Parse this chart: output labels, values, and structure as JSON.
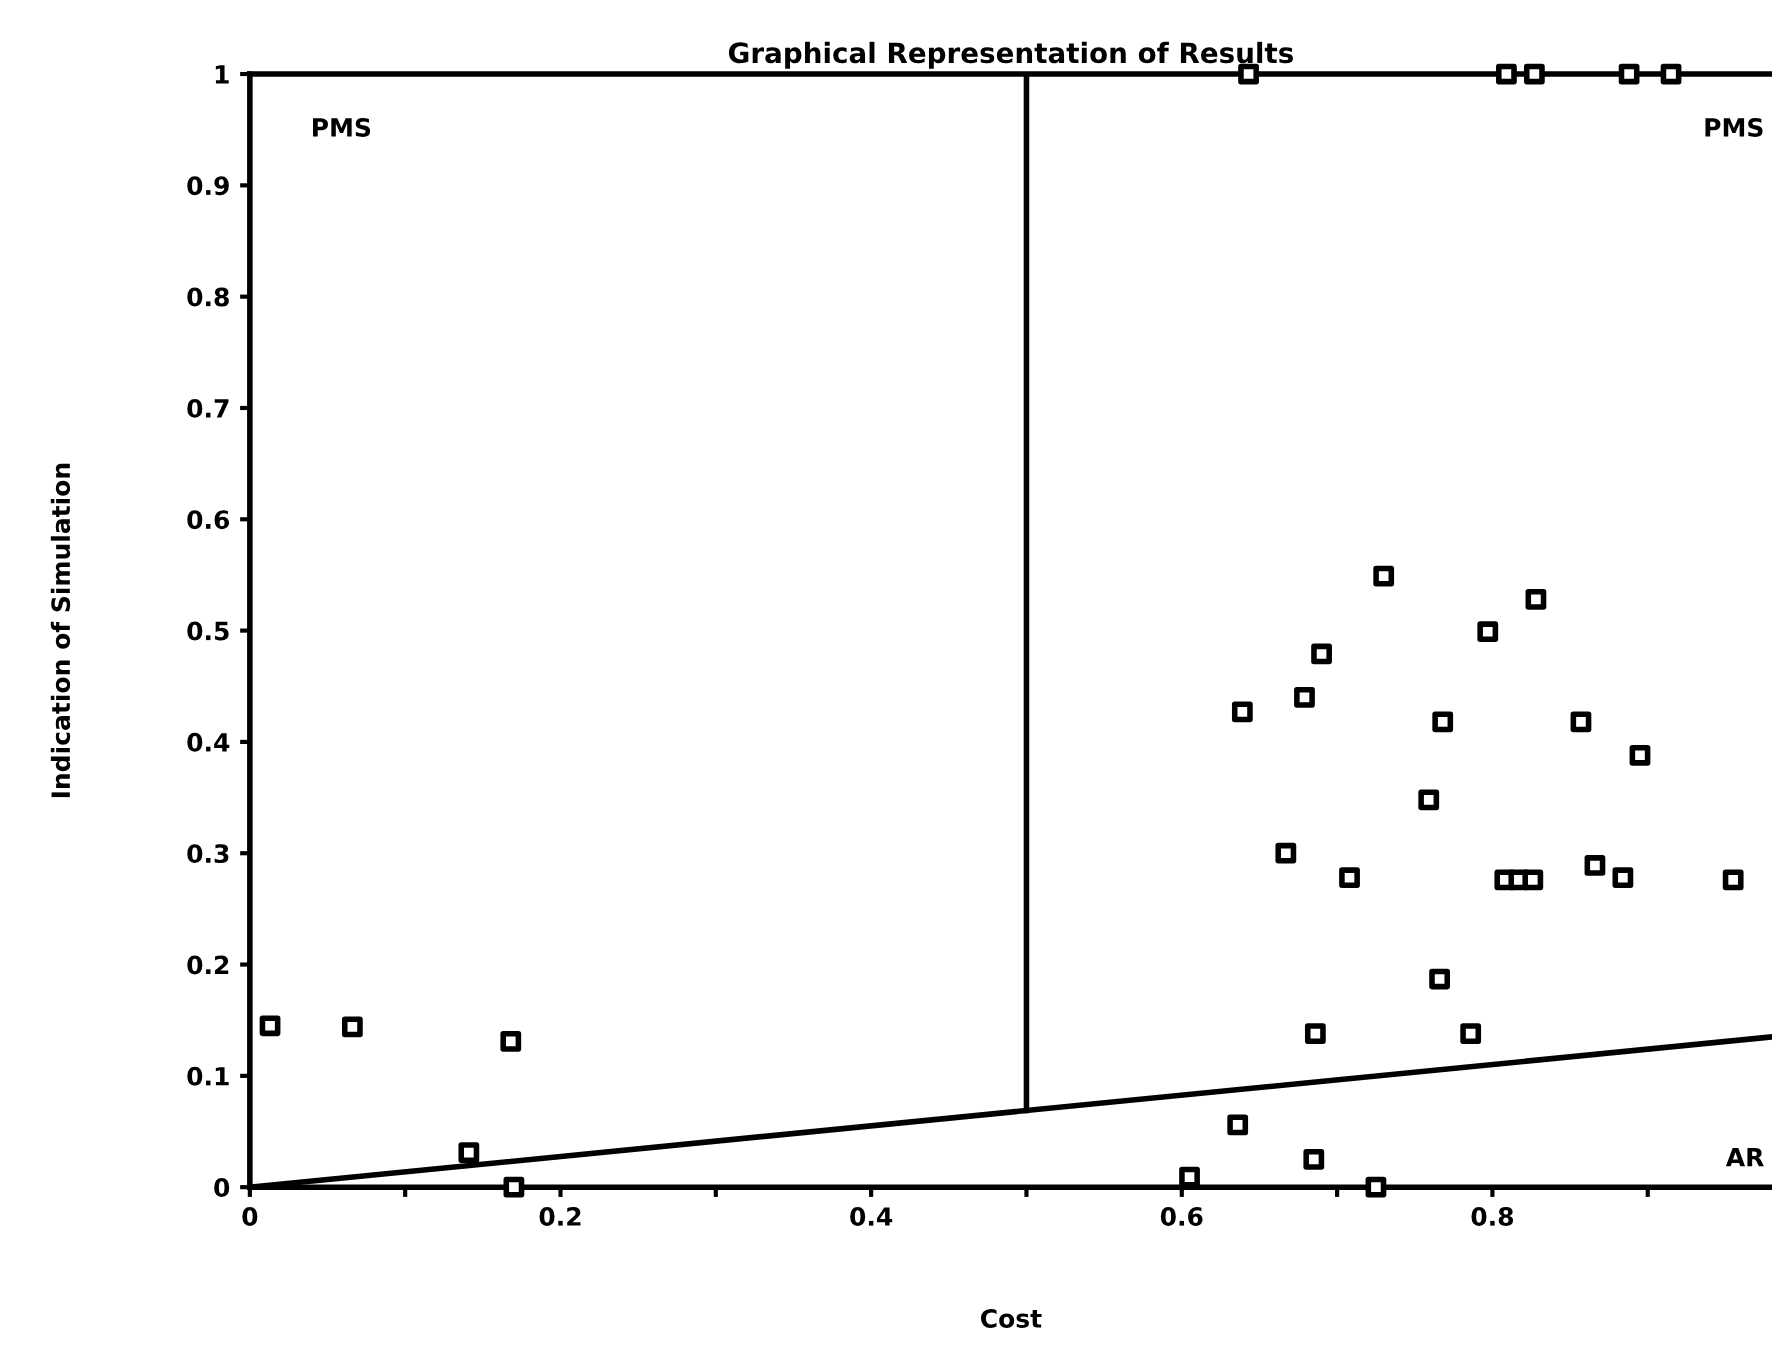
{
  "chart_data": {
    "type": "scatter",
    "title": "Graphical Representation of Results",
    "xlabel": "Cost",
    "ylabel": "Indication of Simulation",
    "xlim": [
      0,
      0.98
    ],
    "ylim": [
      0,
      1
    ],
    "xticks": [
      0,
      {
        "value": 0.1,
        "label": null
      },
      0.2,
      {
        "value": 0.3,
        "label": null
      },
      0.4,
      {
        "value": 0.5,
        "label": null
      },
      0.6,
      {
        "value": 0.7,
        "label": null
      },
      0.8,
      {
        "value": 0.9,
        "label": null
      }
    ],
    "yticks": [
      0,
      0.1,
      0.2,
      0.3,
      0.4,
      0.5,
      0.6,
      0.7,
      0.8,
      0.9,
      1
    ],
    "marker": "square",
    "grid": false,
    "legend": false,
    "series": [
      {
        "color": "#000000",
        "x": [
          0.013,
          0.066,
          0.168,
          0.141,
          0.17,
          0.73,
          0.828,
          0.797,
          0.69,
          0.639,
          0.679,
          0.768,
          0.857,
          0.895,
          0.759,
          0.667,
          0.708,
          0.808,
          0.817,
          0.826,
          0.866,
          0.884,
          0.955,
          0.766,
          0.686,
          0.786,
          0.636,
          0.685,
          0.605,
          0.725,
          0.643,
          0.809,
          0.827,
          0.888,
          0.915
        ],
        "values": [
          0.145,
          0.144,
          0.131,
          0.031,
          0,
          0.549,
          0.528,
          0.499,
          0.479,
          0.427,
          0.44,
          0.418,
          0.418,
          0.388,
          0.348,
          0.3,
          0.278,
          0.276,
          0.276,
          0.276,
          0.289,
          0.278,
          0.276,
          0.187,
          0.138,
          0.138,
          0.056,
          0.025,
          0.009,
          0,
          1,
          1,
          1,
          1,
          1
        ]
      },
      {
        "type": "line",
        "marker": "none",
        "color": "#000000",
        "x": [
          0,
          0.98
        ],
        "values": [
          0,
          0.135
        ]
      },
      {
        "type": "line",
        "marker": "none",
        "color": "#000000",
        "x": [
          0.5,
          0.5,
          0.5
        ],
        "values": [
          0.069,
          0.5,
          1
        ]
      }
    ],
    "annotations": [
      "PMS",
      "PMS",
      "AR"
    ]
  }
}
